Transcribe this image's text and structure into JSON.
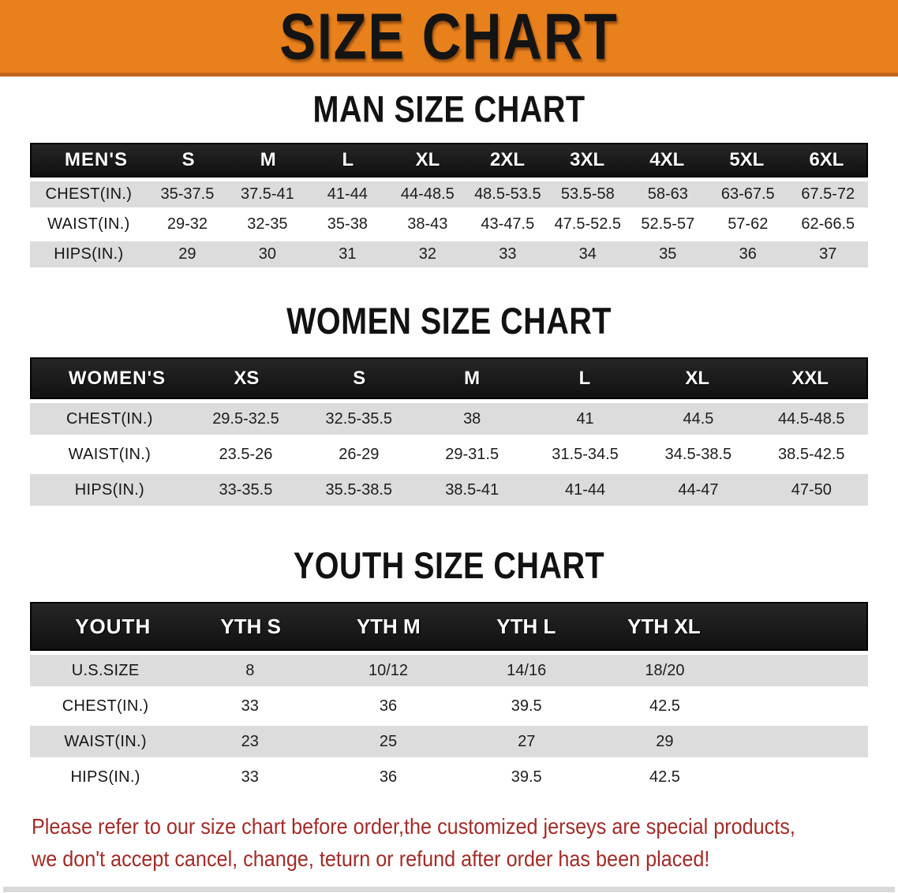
{
  "banner": {
    "title": "SIZE CHART",
    "bg_color": "#e8811c",
    "edge_color": "#c2661a"
  },
  "men": {
    "heading": "MAN SIZE CHART",
    "label": "MEN'S",
    "sizes": [
      "S",
      "M",
      "L",
      "XL",
      "2XL",
      "3XL",
      "4XL",
      "5XL",
      "6XL"
    ],
    "rows": [
      {
        "label": "CHEST(IN.)",
        "values": [
          "35-37.5",
          "37.5-41",
          "41-44",
          "44-48.5",
          "48.5-53.5",
          "53.5-58",
          "58-63",
          "63-67.5",
          "67.5-72"
        ]
      },
      {
        "label": "WAIST(IN.)",
        "values": [
          "29-32",
          "32-35",
          "35-38",
          "38-43",
          "43-47.5",
          "47.5-52.5",
          "52.5-57",
          "57-62",
          "62-66.5"
        ]
      },
      {
        "label": "HIPS(IN.)",
        "values": [
          "29",
          "30",
          "31",
          "32",
          "33",
          "34",
          "35",
          "36",
          "37"
        ]
      }
    ]
  },
  "women": {
    "heading": "WOMEN SIZE CHART",
    "label": "WOMEN'S",
    "sizes": [
      "XS",
      "S",
      "M",
      "L",
      "XL",
      "XXL"
    ],
    "rows": [
      {
        "label": "CHEST(IN.)",
        "values": [
          "29.5-32.5",
          "32.5-35.5",
          "38",
          "41",
          "44.5",
          "44.5-48.5"
        ]
      },
      {
        "label": "WAIST(IN.)",
        "values": [
          "23.5-26",
          "26-29",
          "29-31.5",
          "31.5-34.5",
          "34.5-38.5",
          "38.5-42.5"
        ]
      },
      {
        "label": "HIPS(IN.)",
        "values": [
          "33-35.5",
          "35.5-38.5",
          "38.5-41",
          "41-44",
          "44-47",
          "47-50"
        ]
      }
    ]
  },
  "youth": {
    "heading": "YOUTH SIZE CHART",
    "label": "YOUTH",
    "sizes": [
      "YTH S",
      "YTH M",
      "YTH L",
      "YTH XL"
    ],
    "rows": [
      {
        "label": "U.S.SIZE",
        "values": [
          "8",
          "10/12",
          "14/16",
          "18/20"
        ]
      },
      {
        "label": "CHEST(IN.)",
        "values": [
          "33",
          "36",
          "39.5",
          "42.5"
        ]
      },
      {
        "label": "WAIST(IN.)",
        "values": [
          "23",
          "25",
          "27",
          "29"
        ]
      },
      {
        "label": "HIPS(IN.)",
        "values": [
          "33",
          "36",
          "39.5",
          "42.5"
        ]
      }
    ]
  },
  "footer": {
    "line1": "Please refer to our size chart before order,the customized jerseys are special products,",
    "line2": "we don't accept cancel, change, teturn or refund after order has been placed!",
    "color": "#a12c28"
  }
}
